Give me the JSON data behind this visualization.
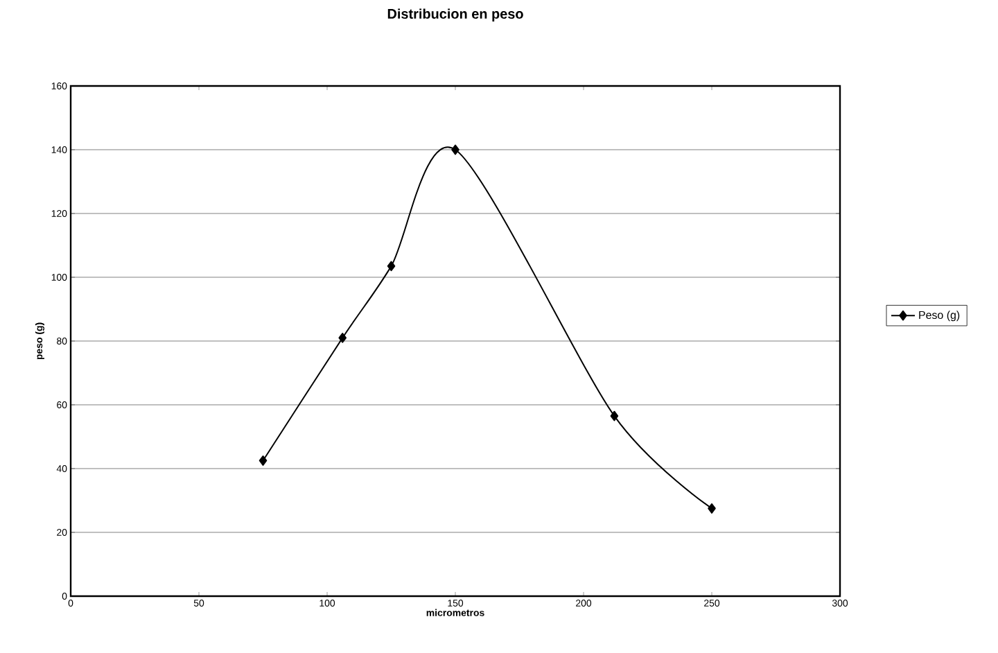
{
  "chart_data": {
    "type": "line",
    "title": "Distribucion en peso",
    "xlabel": "micrometros",
    "ylabel": "peso (g)",
    "x": [
      75,
      106,
      125,
      150,
      212,
      250
    ],
    "series": [
      {
        "name": "Peso (g)",
        "color": "#000000",
        "values": [
          42.5,
          81,
          103.5,
          140,
          56.5,
          27.5
        ]
      }
    ],
    "xlim": [
      0,
      300
    ],
    "xticks": [
      0,
      50,
      100,
      150,
      200,
      250,
      300
    ],
    "ylim": [
      0,
      160
    ],
    "yticks": [
      0,
      20,
      40,
      60,
      80,
      100,
      120,
      140,
      160
    ],
    "grid": "y",
    "legend": "right",
    "marker": "diamond",
    "line_style": "solid"
  }
}
